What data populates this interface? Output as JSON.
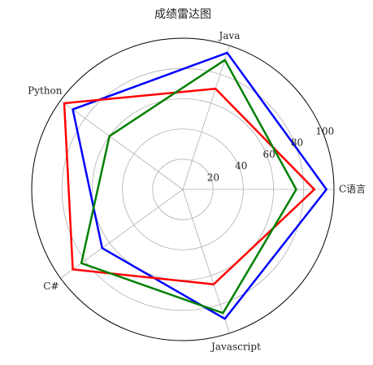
{
  "chart_data": {
    "type": "radar",
    "title": "成绩雷达图",
    "categories": [
      "C语言",
      "Java",
      "Python",
      "C#",
      "Javascript"
    ],
    "rlim": [
      0,
      100
    ],
    "r_ticks": [
      20,
      40,
      60,
      80,
      100
    ],
    "grid": true,
    "series": [
      {
        "values": [
          95,
          95,
          90,
          66,
          90
        ],
        "color": "#0000ff"
      },
      {
        "values": [
          87,
          70,
          97,
          90,
          66
        ],
        "color": "#ff0000"
      },
      {
        "values": [
          75,
          90,
          60,
          83,
          86
        ],
        "color": "#008000"
      }
    ]
  }
}
